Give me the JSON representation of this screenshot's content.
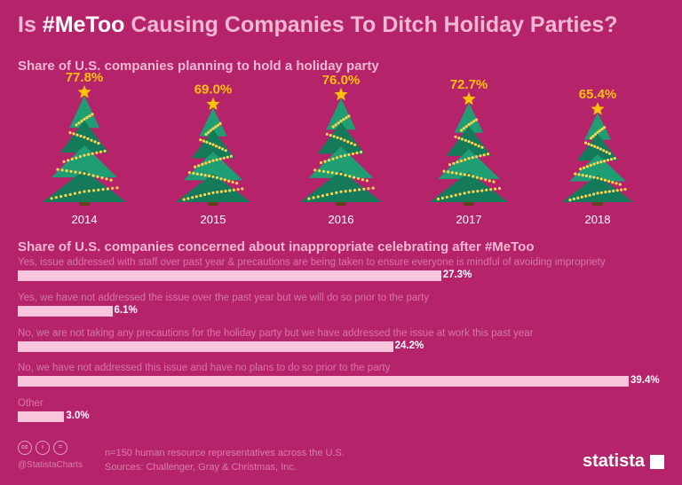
{
  "header": {
    "title_pre": "Is ",
    "title_hl": "#MeToo",
    "title_post": " Causing Companies To Ditch Holiday Parties?",
    "subtitle_1": "Share of U.S. companies planning to hold a holiday party",
    "subtitle_2": "Share of U.S. companies concerned about inappropriate celebrating after #MeToo"
  },
  "chart_data": [
    {
      "type": "bar",
      "title": "Share of U.S. companies planning to hold a holiday party",
      "categories": [
        "2014",
        "2015",
        "2016",
        "2017",
        "2018"
      ],
      "values": [
        77.8,
        69.0,
        76.0,
        72.7,
        65.4
      ],
      "value_labels": [
        "77.8%",
        "69.0%",
        "76.0%",
        "72.7%",
        "65.4%"
      ],
      "ylim": [
        0,
        100
      ],
      "mark": "christmas-tree"
    },
    {
      "type": "bar",
      "orientation": "horizontal",
      "title": "Share of U.S. companies concerned about inappropriate celebrating after #MeToo",
      "categories": [
        "Yes, issue addressed with staff over past year & precautions are being taken to ensure everyone is mindful of avoiding impropriety",
        "Yes, we have not addressed the issue over the past year but we will do so prior to the party",
        "No, we are not taking any precautions for the holiday party but we have addressed the issue at work this past year",
        "No, we have not addressed this issue and have no plans to do so prior to the party",
        "Other"
      ],
      "values": [
        27.3,
        6.1,
        24.2,
        39.4,
        3.0
      ],
      "value_labels": [
        "27.3%",
        "6.1%",
        "24.2%",
        "39.4%",
        "3.0%"
      ],
      "xlim": [
        0,
        39.4
      ]
    }
  ],
  "footer": {
    "cc_icons": [
      "cc-icon",
      "info-icon",
      "equals-icon"
    ],
    "cc_labels": [
      "cc",
      "i",
      "="
    ],
    "handle": "@StatistaCharts",
    "note_1": "n=150 human resource representatives across the U.S.",
    "note_2": "Sources: Challenger, Gray & Christmas, Inc.",
    "brand": "statista"
  },
  "colors": {
    "background": "#b5246b",
    "tree": "#1f9e74",
    "tree_dark": "#157a5a",
    "lights": "#ffd54f",
    "star": "#ffc107",
    "bar": "#f7c6dd"
  }
}
